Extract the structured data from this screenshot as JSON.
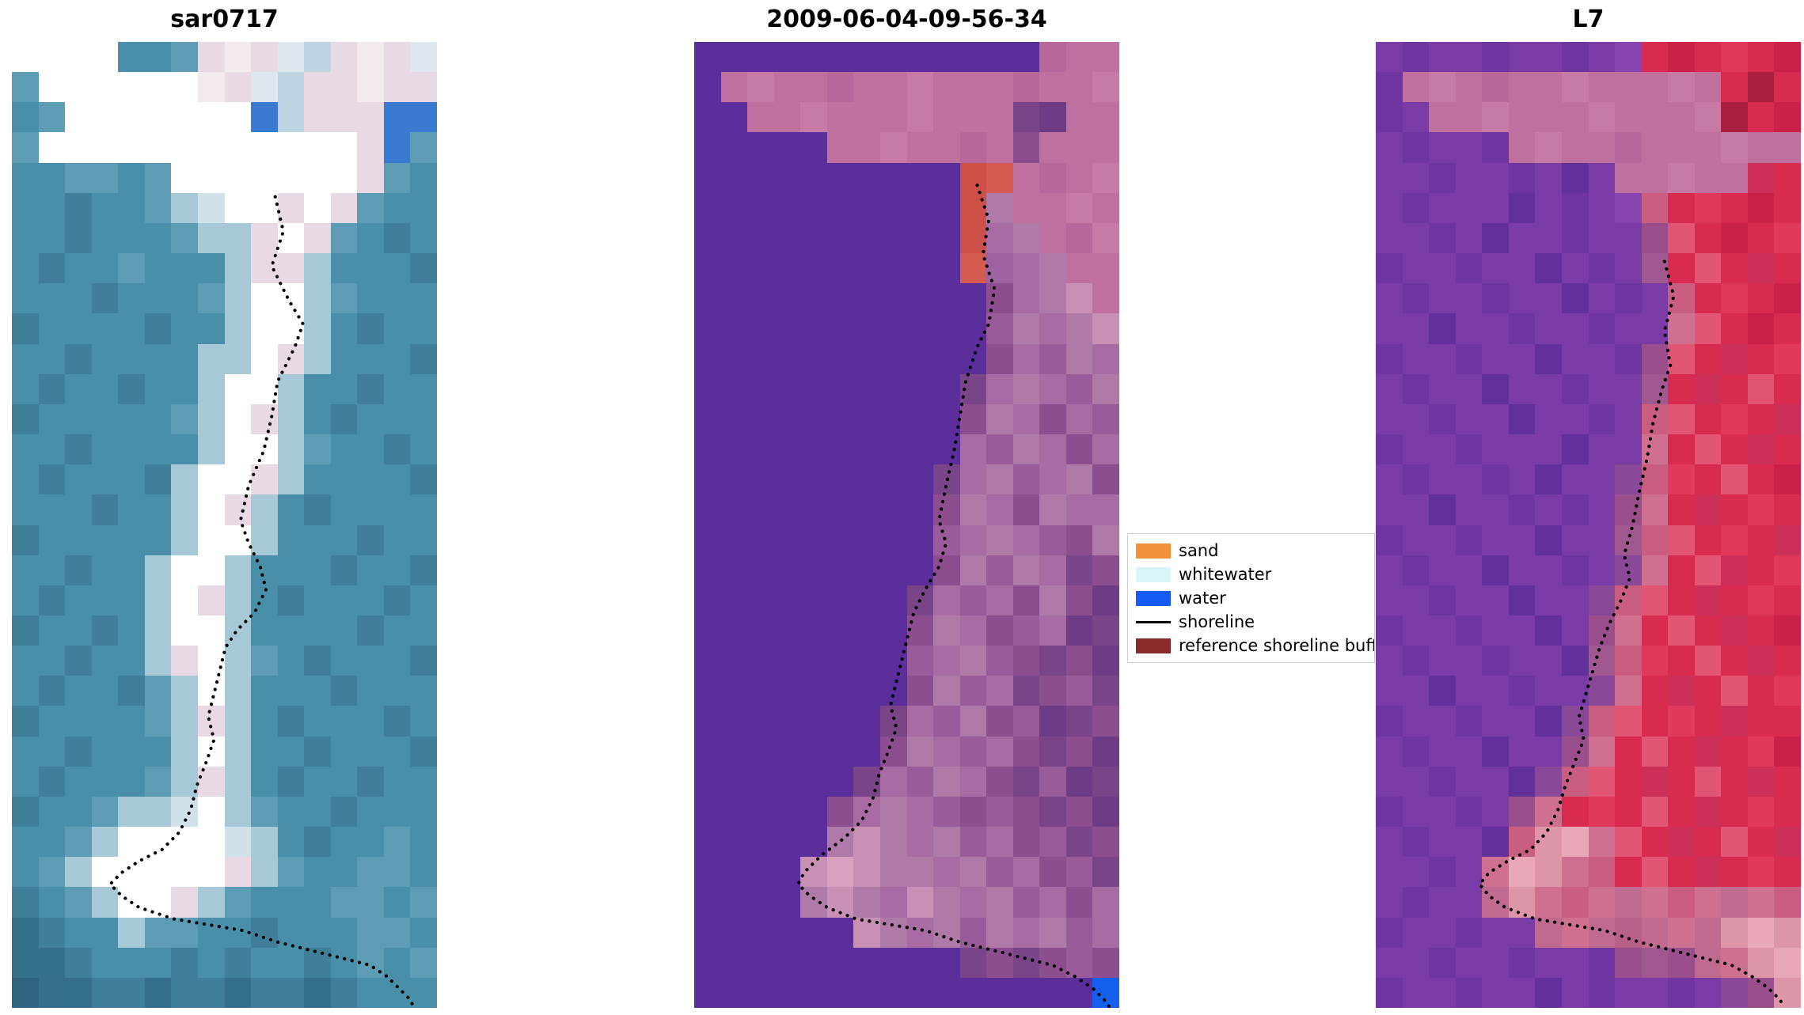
{
  "panels": [
    {
      "title": "sar0717",
      "kind": "sar-satellite-image",
      "grid_cols": 16,
      "grid_rows": 32,
      "pixels": [
        "FFFFFF,FFFFFF,FFFFFF,FFFFFF,4A8FA9,4A8FA9,5C9DB5,E8D9E4,F2EAEE,E8D9E4,DCE8EE,BFD4E2,E8D9E4,F2EAEE,E8D9E4,DCE8EE",
        "5C9DB5,FFFFFF,FFFFFF,FFFFFF,FFFFFF,FFFFFF,FFFFFF,F2EAEE,E8D9E4,DCE8EE,BFD4E2,E8D9E4,E8D9E4,F2EAEE,E8D9E4,E8D9E4",
        "4A8FA9,5C9DB5,FFFFFF,FFFFFF,FFFFFF,FFFFFF,FFFFFF,FFFFFF,FFFFFF,3B7AD1,BFD4E2,E8D9E4,E8D9E4,E8D9E4,3B7AD1,3B7AD1",
        "5C9DB5,FFFFFF,FFFFFF,FFFFFF,FFFFFF,FFFFFF,FFFFFF,FFFFFF,FFFFFF,FFFFFF,FFFFFF,FFFFFF,FFFFFF,E8D9E4,3B7AD1,5C9DB5",
        "4A8FA9,4A8FA9,5C9DB5,5C9DB5,4A8FA9,5C9DB5,FFFFFF,FFFFFF,FFFFFF,FFFFFF,FFFFFF,FFFFFF,FFFFFF,E8D9E4,5C9DB5,4A8FA9",
        "4A8FA9,4A8FA9,3F7F99,4A8FA9,4A8FA9,5C9DB5,A7C8D6,CFE2EA,FFFFFF,FFFFFF,E8D9E4,FFFFFF,E8D9E4,5C9DB5,4A8FA9,4A8FA9",
        "4A8FA9,4A8FA9,3F7F99,4A8FA9,4A8FA9,4A8FA9,5C9DB5,A7C8D6,A7C8D6,E8D9E4,FFFFFF,E8D9E4,5C9DB5,4A8FA9,3F7F99,4A8FA9",
        "4A8FA9,3F7F99,4A8FA9,4A8FA9,5C9DB5,4A8FA9,4A8FA9,4A8FA9,A7C8D6,E8D9E4,E8D9E4,A7C8D6,4A8FA9,4A8FA9,4A8FA9,3F7F99",
        "4A8FA9,4A8FA9,4A8FA9,3F7F99,4A8FA9,4A8FA9,4A8FA9,5C9DB5,A7C8D6,FFFFFF,FFFFFF,A7C8D6,5C9DB5,4A8FA9,4A8FA9,4A8FA9",
        "3F7F99,4A8FA9,4A8FA9,4A8FA9,4A8FA9,3F7F99,4A8FA9,4A8FA9,A7C8D6,FFFFFF,FFFFFF,A7C8D6,4A8FA9,3F7F99,4A8FA9,4A8FA9",
        "4A8FA9,4A8FA9,3F7F99,4A8FA9,4A8FA9,4A8FA9,4A8FA9,A7C8D6,A7C8D6,FFFFFF,E8D9E4,A7C8D6,4A8FA9,4A8FA9,4A8FA9,3F7F99",
        "4A8FA9,3F7F99,4A8FA9,4A8FA9,3F7F99,4A8FA9,4A8FA9,A7C8D6,FFFFFF,FFFFFF,A7C8D6,4A8FA9,4A8FA9,3F7F99,4A8FA9,4A8FA9",
        "3F7F99,4A8FA9,4A8FA9,4A8FA9,4A8FA9,4A8FA9,5C9DB5,A7C8D6,FFFFFF,E8D9E4,A7C8D6,4A8FA9,3F7F99,4A8FA9,4A8FA9,4A8FA9",
        "4A8FA9,4A8FA9,3F7F99,4A8FA9,4A8FA9,4A8FA9,4A8FA9,A7C8D6,FFFFFF,FFFFFF,A7C8D6,5C9DB5,4A8FA9,4A8FA9,3F7F99,4A8FA9",
        "4A8FA9,3F7F99,4A8FA9,4A8FA9,4A8FA9,3F7F99,A7C8D6,FFFFFF,FFFFFF,E8D9E4,A7C8D6,4A8FA9,4A8FA9,4A8FA9,4A8FA9,3F7F99",
        "4A8FA9,4A8FA9,4A8FA9,3F7F99,4A8FA9,4A8FA9,A7C8D6,FFFFFF,E8D9E4,A7C8D6,4A8FA9,3F7F99,4A8FA9,4A8FA9,4A8FA9,4A8FA9",
        "3F7F99,4A8FA9,4A8FA9,4A8FA9,4A8FA9,4A8FA9,A7C8D6,FFFFFF,FFFFFF,A7C8D6,4A8FA9,4A8FA9,4A8FA9,3F7F99,4A8FA9,4A8FA9",
        "4A8FA9,4A8FA9,3F7F99,4A8FA9,4A8FA9,A7C8D6,FFFFFF,FFFFFF,A7C8D6,4A8FA9,4A8FA9,4A8FA9,3F7F99,4A8FA9,4A8FA9,3F7F99",
        "4A8FA9,3F7F99,4A8FA9,4A8FA9,4A8FA9,A7C8D6,FFFFFF,E8D9E4,A7C8D6,4A8FA9,3F7F99,4A8FA9,4A8FA9,4A8FA9,3F7F99,4A8FA9",
        "3F7F99,4A8FA9,4A8FA9,3F7F99,4A8FA9,A7C8D6,FFFFFF,FFFFFF,A7C8D6,4A8FA9,4A8FA9,4A8FA9,4A8FA9,3F7F99,4A8FA9,4A8FA9",
        "4A8FA9,4A8FA9,3F7F99,4A8FA9,4A8FA9,A7C8D6,E8D9E4,FFFFFF,A7C8D6,5C9DB5,4A8FA9,3F7F99,4A8FA9,4A8FA9,4A8FA9,3F7F99",
        "4A8FA9,3F7F99,4A8FA9,4A8FA9,3F7F99,5C9DB5,A7C8D6,FFFFFF,A7C8D6,4A8FA9,4A8FA9,4A8FA9,3F7F99,4A8FA9,4A8FA9,4A8FA9",
        "3F7F99,4A8FA9,4A8FA9,4A8FA9,4A8FA9,5C9DB5,A7C8D6,E8D9E4,A7C8D6,4A8FA9,3F7F99,4A8FA9,4A8FA9,4A8FA9,3F7F99,4A8FA9",
        "4A8FA9,4A8FA9,3F7F99,4A8FA9,4A8FA9,4A8FA9,A7C8D6,FFFFFF,A7C8D6,4A8FA9,4A8FA9,3F7F99,4A8FA9,4A8FA9,4A8FA9,3F7F99",
        "4A8FA9,3F7F99,4A8FA9,4A8FA9,4A8FA9,5C9DB5,A7C8D6,E8D9E4,A7C8D6,4A8FA9,3F7F99,4A8FA9,4A8FA9,3F7F99,4A8FA9,4A8FA9",
        "3F7F99,4A8FA9,4A8FA9,5C9DB5,A7C8D6,A7C8D6,CFE2EA,FFFFFF,A7C8D6,5C9DB5,4A8FA9,4A8FA9,3F7F99,4A8FA9,4A8FA9,4A8FA9",
        "4A8FA9,4A8FA9,5C9DB5,A7C8D6,FFFFFF,FFFFFF,FFFFFF,FFFFFF,CFE2EA,A7C8D6,4A8FA9,3F7F99,4A8FA9,4A8FA9,5C9DB5,4A8FA9",
        "4A8FA9,5C9DB5,A7C8D6,FFFFFF,FFFFFF,FFFFFF,FFFFFF,FFFFFF,E8D9E4,A7C8D6,5C9DB5,4A8FA9,4A8FA9,5C9DB5,5C9DB5,4A8FA9",
        "3F7F99,4A8FA9,5C9DB5,A7C8D6,FFFFFF,FFFFFF,E8D9E4,A7C8D6,5C9DB5,4A8FA9,4A8FA9,4A8FA9,5C9DB5,5C9DB5,4A8FA9,5C9DB5",
        "366F8C,3F7F99,4A8FA9,4A8FA9,A7C8D6,5C9DB5,5C9DB5,4A8FA9,4A8FA9,3F7F99,4A8FA9,4A8FA9,4A8FA9,5C9DB5,5C9DB5,4A8FA9",
        "366F8C,366F8C,3F7F99,4A8FA9,4A8FA9,4A8FA9,3F7F99,4A8FA9,3F7F99,4A8FA9,4A8FA9,3F7F99,4A8FA9,5C9DB5,4A8FA9,5C9DB5",
        "2E6480,366F8C,366F8C,3F7F99,3F7F99,366F8C,3F7F99,3F7F99,366F8C,3F7F99,3F7F99,366F8C,3F7F99,4A8FA9,4A8FA9,4A8FA9"
      ],
      "shoreline_points": "228,134 235,164 225,194 240,224 252,244 245,264 230,294 225,324 218,354 205,384 198,414 205,434 215,454 220,474 210,494 195,509 185,524 180,544 175,564 170,584 175,604 168,624 160,644 155,664 145,684 130,699 110,709 95,719 85,729 95,739 110,749 140,759 170,764 200,769 230,779 250,784 270,789 290,794 310,799 325,809 335,819 345,829 348,836"
    },
    {
      "title": "2009-06-04-09-56-34",
      "kind": "classified-image",
      "grid_cols": 16,
      "grid_rows": 32,
      "pixels": [
        "5B2E9C,5B2E9C,5B2E9C,5B2E9C,5B2E9C,5B2E9C,5B2E9C,5B2E9C,5B2E9C,5B2E9C,5B2E9C,5B2E9C,5B2E9C,B8679A,C0709F,C0709F",
        "5B2E9C,C0709F,C87AA6,C0709F,C0709F,B8679A,C0709F,C0709F,C87AA6,C0709F,C0709F,C0709F,B8679A,C0709F,C0709F,C87AA6",
        "5B2E9C,5B2E9C,C0709F,C0709F,C87AA6,C0709F,C0709F,C0709F,C87AA6,C0709F,C0709F,C0709F,7A4488,6E3C86,C0709F,C0709F",
        "5B2E9C,5B2E9C,5B2E9C,5B2E9C,5B2E9C,C0709F,C0709F,C87AA6,C0709F,C0709F,B8679A,C0709F,8C4E8E,C0709F,C0709F,C0709F",
        "5B2E9C,5B2E9C,5B2E9C,5B2E9C,5B2E9C,5B2E9C,5B2E9C,5B2E9C,5B2E9C,5B2E9C,CC4F48,D45B50,C0709F,B8679A,C0709F,C87AA6",
        "5B2E9C,5B2E9C,5B2E9C,5B2E9C,5B2E9C,5B2E9C,5B2E9C,5B2E9C,5B2E9C,5B2E9C,CC4F48,B07AA8,C0709F,C0709F,C87AA6,C0709F",
        "5B2E9C,5B2E9C,5B2E9C,5B2E9C,5B2E9C,5B2E9C,5B2E9C,5B2E9C,5B2E9C,5B2E9C,CC4F48,A86BA4,B07AA8,C0709F,B8679A,C87AA6",
        "5B2E9C,5B2E9C,5B2E9C,5B2E9C,5B2E9C,5B2E9C,5B2E9C,5B2E9C,5B2E9C,5B2E9C,D45B50,9E62A2,A86BA4,B07AA8,C0709F,C0709F",
        "5B2E9C,5B2E9C,5B2E9C,5B2E9C,5B2E9C,5B2E9C,5B2E9C,5B2E9C,5B2E9C,5B2E9C,5B2E9C,8C4E8E,A86BA4,B07AA8,C890B4,C0709F",
        "5B2E9C,5B2E9C,5B2E9C,5B2E9C,5B2E9C,5B2E9C,5B2E9C,5B2E9C,5B2E9C,5B2E9C,5B2E9C,9A5B9A,B07AA8,A86BA4,B07AA8,C890B4",
        "5B2E9C,5B2E9C,5B2E9C,5B2E9C,5B2E9C,5B2E9C,5B2E9C,5B2E9C,5B2E9C,5B2E9C,5B2E9C,8C4E8E,A86BA4,9A5B9A,B07AA8,A86BA4",
        "5B2E9C,5B2E9C,5B2E9C,5B2E9C,5B2E9C,5B2E9C,5B2E9C,5B2E9C,5B2E9C,5B2E9C,7A4488,A86BA4,B07AA8,A86BA4,9A5B9A,B07AA8",
        "5B2E9C,5B2E9C,5B2E9C,5B2E9C,5B2E9C,5B2E9C,5B2E9C,5B2E9C,5B2E9C,5B2E9C,8C4E8E,B07AA8,A86BA4,8C4E8E,A86BA4,9A5B9A",
        "5B2E9C,5B2E9C,5B2E9C,5B2E9C,5B2E9C,5B2E9C,5B2E9C,5B2E9C,5B2E9C,5B2E9C,A86BA4,9A5B9A,B07AA8,A86BA4,8C4E8E,A86BA4",
        "5B2E9C,5B2E9C,5B2E9C,5B2E9C,5B2E9C,5B2E9C,5B2E9C,5B2E9C,5B2E9C,7A4488,A86BA4,B07AA8,9A5B9A,A86BA4,B07AA8,8C4E8E",
        "5B2E9C,5B2E9C,5B2E9C,5B2E9C,5B2E9C,5B2E9C,5B2E9C,5B2E9C,5B2E9C,8C4E8E,B07AA8,A86BA4,8C4E8E,B07AA8,A86BA4,A86BA4",
        "5B2E9C,5B2E9C,5B2E9C,5B2E9C,5B2E9C,5B2E9C,5B2E9C,5B2E9C,5B2E9C,9A5B9A,A86BA4,B07AA8,A86BA4,9A5B9A,8C4E8E,B07AA8",
        "5B2E9C,5B2E9C,5B2E9C,5B2E9C,5B2E9C,5B2E9C,5B2E9C,5B2E9C,5B2E9C,8C4E8E,B07AA8,9A5B9A,B07AA8,A86BA4,7A4488,8C4E8E",
        "5B2E9C,5B2E9C,5B2E9C,5B2E9C,5B2E9C,5B2E9C,5B2E9C,5B2E9C,7A4488,A86BA4,9A5B9A,A86BA4,8C4E8E,B07AA8,8C4E8E,6E3C86",
        "5B2E9C,5B2E9C,5B2E9C,5B2E9C,5B2E9C,5B2E9C,5B2E9C,5B2E9C,8C4E8E,B07AA8,A86BA4,8C4E8E,9A5B9A,A86BA4,6E3C86,7A4488",
        "5B2E9C,5B2E9C,5B2E9C,5B2E9C,5B2E9C,5B2E9C,5B2E9C,5B2E9C,9A5B9A,A86BA4,B07AA8,9A5B9A,8C4E8E,7A4488,8C4E8E,6E3C86",
        "5B2E9C,5B2E9C,5B2E9C,5B2E9C,5B2E9C,5B2E9C,5B2E9C,5B2E9C,8C4E8E,B07AA8,9A5B9A,A86BA4,7A4488,8C4E8E,9A5B9A,7A4488",
        "5B2E9C,5B2E9C,5B2E9C,5B2E9C,5B2E9C,5B2E9C,5B2E9C,7A4488,A86BA4,9A5B9A,B07AA8,8C4E8E,9A5B9A,6E3C86,7A4488,8C4E8E",
        "5B2E9C,5B2E9C,5B2E9C,5B2E9C,5B2E9C,5B2E9C,5B2E9C,8C4E8E,B07AA8,A86BA4,9A5B9A,A86BA4,8C4E8E,7A4488,8C4E8E,6E3C86",
        "5B2E9C,5B2E9C,5B2E9C,5B2E9C,5B2E9C,5B2E9C,7A4488,A86BA4,9A5B9A,B07AA8,A86BA4,8C4E8E,7A4488,9A5B9A,6E3C86,7A4488",
        "5B2E9C,5B2E9C,5B2E9C,5B2E9C,5B2E9C,8C4E8E,A86BA4,B07AA8,A86BA4,9A5B9A,8C4E8E,9A5B9A,8C4E8E,7A4488,8C4E8E,6E3C86",
        "5B2E9C,5B2E9C,5B2E9C,5B2E9C,5B2E9C,B07AA8,C890B4,B07AA8,A86BA4,B07AA8,9A5B9A,A86BA4,8C4E8E,9A5B9A,7A4488,8C4E8E",
        "5B2E9C,5B2E9C,5B2E9C,5B2E9C,C890B4,D8A0C0,C890B4,B07AA8,B07AA8,A86BA4,B07AA8,9A5B9A,A86BA4,8C4E8E,9A5B9A,7A4488",
        "5B2E9C,5B2E9C,5B2E9C,5B2E9C,B07AA8,C890B4,B07AA8,A86BA4,C890B4,B07AA8,A86BA4,B07AA8,9A5B9A,A86BA4,8C4E8E,A86BA4",
        "5B2E9C,5B2E9C,5B2E9C,5B2E9C,5B2E9C,5B2E9C,C890B4,B07AA8,A86BA4,B07AA8,9A5B9A,B07AA8,A86BA4,B07AA8,9A5B9A,A86BA4",
        "5B2E9C,5B2E9C,5B2E9C,5B2E9C,5B2E9C,5B2E9C,5B2E9C,5B2E9C,5B2E9C,5B2E9C,7A4488,8C4E8E,7A4488,8C4E8E,9A5B9A,8C4E8E",
        "5B2E9C,5B2E9C,5B2E9C,5B2E9C,5B2E9C,5B2E9C,5B2E9C,5B2E9C,5B2E9C,5B2E9C,5B2E9C,5B2E9C,5B2E9C,5B2E9C,5B2E9C,155FEF"
      ],
      "shoreline_points": "245,124 255,154 250,184 260,214 255,244 245,264 235,294 230,324 225,354 218,384 212,414 218,434 212,454 200,474 190,494 185,514 180,534 175,554 170,574 175,594 168,614 160,634 155,654 145,674 130,689 110,704 95,719 90,729 100,739 115,749 140,759 170,764 200,769 230,779 250,784 270,789 290,794 310,799 330,809 345,819 355,829 360,836"
    },
    {
      "title": "L7",
      "kind": "landsat7-image",
      "grid_cols": 16,
      "grid_rows": 32,
      "pixels": [
        "7B3BA6,6E34A0,7B3BA6,7B3BA6,6E34A0,7B3BA6,7B3BA6,6E34A0,7B3BA6,8844B0,D92B50,C92148,D92B50,E0395C,D92B50,C92148",
        "6E34A0,C0709F,C87AA6,C0709F,B8679A,C0709F,C0709F,C87AA6,C0709F,C0709F,C0709F,C87AA6,C0709F,D92B50,A8203E,D92B50",
        "6E34A0,7B3BA6,C0709F,C0709F,C87AA6,C0709F,C0709F,C0709F,C87AA6,C0709F,C0709F,C0709F,C87AA6,A8203E,D92B50,C92148",
        "7B3BA6,6E34A0,7B3BA6,7B3BA6,6E34A0,C0709F,C87AA6,C0709F,C0709F,B8679A,C0709F,C0709F,C0709F,C87AA6,C0709F,C0709F",
        "7B3BA6,7B3BA6,6E34A0,7B3BA6,7B3BA6,6E34A0,7B3BA6,62309A,7B3BA6,C0709F,C0709F,C87AA6,C0709F,C0709F,CC3058,D92B50",
        "7B3BA6,6E34A0,7B3BA6,7B3BA6,7B3BA6,62309A,7B3BA6,6E34A0,7B3BA6,8844B0,C95E80,D92B50,E0395C,D92B50,C92148,D92B50",
        "7B3BA6,7B3BA6,6E34A0,7B3BA6,62309A,7B3BA6,7B3BA6,6E34A0,7B3BA6,7B3BA6,9A4E8C,E25674,D92B50,C92148,D92B50,E0395C",
        "6E34A0,7B3BA6,7B3BA6,6E34A0,7B3BA6,7B3BA6,62309A,7B3BA6,6E34A0,7B3BA6,A05890,D92B50,E25674,D92B50,CC3058,D92B50",
        "7B3BA6,6E34A0,7B3BA6,7B3BA6,6E34A0,7B3BA6,7B3BA6,62309A,7B3BA6,6E34A0,7B3BA6,C95E80,D92B50,E0395C,D92B50,C92148",
        "7B3BA6,7B3BA6,62309A,7B3BA6,7B3BA6,6E34A0,7B3BA6,7B3BA6,6E34A0,7B3BA6,7B3BA6,D07090,E25674,D92B50,C92148,D92B50",
        "6E34A0,7B3BA6,7B3BA6,6E34A0,7B3BA6,7B3BA6,62309A,7B3BA6,7B3BA6,6E34A0,9A4E8C,E25674,D92B50,CC3058,D92B50,E0395C",
        "7B3BA6,6E34A0,7B3BA6,7B3BA6,62309A,7B3BA6,7B3BA6,6E34A0,7B3BA6,7B3BA6,A05890,D92B50,CC3058,D92B50,E25674,D92B50",
        "7B3BA6,7B3BA6,6E34A0,7B3BA6,7B3BA6,62309A,7B3BA6,7B3BA6,6E34A0,7B3BA6,C95E80,E25674,D92B50,E0395C,D92B50,CC3058",
        "6E34A0,7B3BA6,7B3BA6,6E34A0,7B3BA6,7B3BA6,7B3BA6,62309A,7B3BA6,7B3BA6,D07090,D92B50,E25674,D92B50,CC3058,D92B50",
        "7B3BA6,6E34A0,7B3BA6,7B3BA6,6E34A0,7B3BA6,62309A,7B3BA6,7B3BA6,8A4898,C95E80,E0395C,D92B50,E25674,D92B50,C92148",
        "7B3BA6,7B3BA6,62309A,7B3BA6,7B3BA6,6E34A0,7B3BA6,6E34A0,7B3BA6,9A4E8C,D07090,D92B50,CC3058,D92B50,E0395C,D92B50",
        "6E34A0,7B3BA6,7B3BA6,6E34A0,7B3BA6,7B3BA6,62309A,7B3BA6,7B3BA6,A05890,C95E80,E25674,D92B50,E0395C,D92B50,CC3058",
        "7B3BA6,6E34A0,7B3BA6,7B3BA6,62309A,7B3BA6,7B3BA6,6E34A0,7B3BA6,8A4898,D07090,D92B50,E25674,CC3058,D92B50,E0395C",
        "7B3BA6,7B3BA6,6E34A0,7B3BA6,7B3BA6,62309A,7B3BA6,7B3BA6,8A4898,C95E80,E25674,D92B50,CC3058,D92B50,E0395C,D92B50",
        "6E34A0,7B3BA6,7B3BA6,6E34A0,7B3BA6,7B3BA6,62309A,7B3BA6,9A4E8C,D07090,D92B50,E25674,D92B50,CC3058,D92B50,C92148",
        "7B3BA6,6E34A0,7B3BA6,7B3BA6,6E34A0,7B3BA6,7B3BA6,62309A,A05890,C95E80,E0395C,D92B50,E25674,D92B50,CC3058,D92B50",
        "7B3BA6,7B3BA6,62309A,7B3BA6,7B3BA6,6E34A0,7B3BA6,7B3BA6,8A4898,D07090,D92B50,CC3058,D92B50,E25674,D92B50,E0395C",
        "6E34A0,7B3BA6,7B3BA6,6E34A0,7B3BA6,7B3BA6,62309A,8A4898,C95E80,E25674,D92B50,E0395C,D92B50,CC3058,D92B50,D92B50",
        "7B3BA6,6E34A0,7B3BA6,7B3BA6,62309A,7B3BA6,7B3BA6,9A4E8C,D07090,D92B50,E25674,D92B50,CC3058,D92B50,E0395C,C92148",
        "7B3BA6,7B3BA6,6E34A0,7B3BA6,7B3BA6,62309A,8A4898,C95E80,E25674,D92B50,CC3058,D92B50,E25674,D92B50,CC3058,D92B50",
        "6E34A0,7B3BA6,7B3BA6,6E34A0,7B3BA6,9A4E8C,D07090,D92B50,E0395C,D92B50,E25674,D92B50,CC3058,D92B50,E0395C,D92B50",
        "7B3BA6,6E34A0,7B3BA6,7B3BA6,62309A,C95E80,DE95A8,E8A8B8,D07090,E25674,D92B50,CC3058,D92B50,E25674,D92B50,CC3058",
        "7B3BA6,7B3BA6,6E34A0,7B3BA6,D07090,E8A8B8,DE95A8,D07090,C95E80,D92B50,E25674,D92B50,CC3058,D92B50,E0395C,D92B50",
        "7B3BA6,6E34A0,7B3BA6,7B3BA6,C06A90,DE95A8,D07090,C95E80,D07090,C06A90,D07090,C95E80,D07090,C06A90,D07090,C95E80",
        "6E34A0,7B3BA6,7B3BA6,6E34A0,7B3BA6,7B3BA6,C06A90,D07090,C06A90,B86088,C06A90,D07090,C06A90,DE95A8,E8A8B8,DE95A8",
        "7B3BA6,7B3BA6,6E34A0,7B3BA6,7B3BA6,6E34A0,7B3BA6,7B3BA6,6E34A0,9A4E8C,A05890,9A4E8C,C06A90,D07090,DE95A8,E8A8B8",
        "6E34A0,7B3BA6,7B3BA6,6E34A0,7B3BA6,7B3BA6,62309A,7B3BA6,6E34A0,7B3BA6,7B3BA6,6E34A0,7B3BA6,8A4898,9A4E8C,DE95A8"
      ],
      "shoreline_points": "250,190 258,220 250,250 255,280 248,300 240,330 235,360 228,390 222,420 215,444 220,464 212,484 202,504 194,524 188,544 182,564 176,584 180,604 172,624 164,644 158,664 148,684 134,699 114,709 98,719 90,729 98,739 112,749 138,759 168,764 198,769 228,779 248,784 268,789 288,794 308,799 326,809 340,819 350,829 354,836"
    }
  ],
  "legend": {
    "items": [
      {
        "label": "sand",
        "swatch": "#F0913A",
        "type": "patch"
      },
      {
        "label": "whitewater",
        "swatch": "#D8F6F7",
        "type": "patch"
      },
      {
        "label": "water",
        "swatch": "#155BF2",
        "type": "patch"
      },
      {
        "label": "shoreline",
        "swatch": "#000000",
        "type": "line"
      },
      {
        "label": "reference shoreline buffer",
        "swatch": "#8B2A2A",
        "type": "patch"
      }
    ]
  }
}
